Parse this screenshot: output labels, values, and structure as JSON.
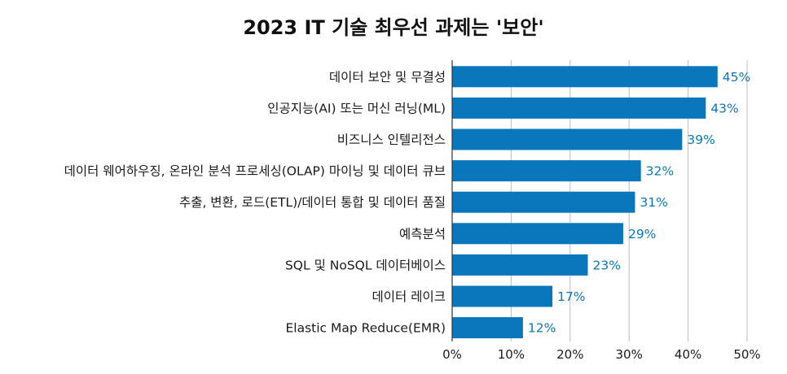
{
  "colors": {
    "bar": "#0a77bd",
    "data_label": "#0a77bd",
    "grid": "#bdbdbd",
    "text": "#1a1a1a"
  },
  "chart_data": {
    "type": "bar",
    "orientation": "horizontal",
    "title": "2023 IT 기술 최우선 과제는 '보안'",
    "categories": [
      "데이터 보안 및 무결성",
      "인공지능(AI) 또는 머신 러닝(ML)",
      "비즈니스 인텔리전스",
      "데이터 웨어하우징, 온라인 분석 프로세싱(OLAP) 마이닝 및 데이터 큐브",
      "추출, 변환, 로드(ETL)/데이터 통합 및 데이터 품질",
      "예측분석",
      "SQL 및 NoSQL 데이터베이스",
      "데이터 레이크",
      "Elastic Map Reduce(EMR)"
    ],
    "values": [
      45,
      43,
      39,
      32,
      31,
      29,
      23,
      17,
      12
    ],
    "value_labels": [
      "45%",
      "43%",
      "39%",
      "32%",
      "31%",
      "29%",
      "23%",
      "17%",
      "12%"
    ],
    "xlim": [
      0,
      50
    ],
    "x_ticks": [
      0,
      10,
      20,
      30,
      40,
      50
    ],
    "x_tick_labels": [
      "0%",
      "10%",
      "20%",
      "30%",
      "40%",
      "50%"
    ],
    "xlabel": "",
    "ylabel": "",
    "grid": "vertical",
    "legend": "none"
  }
}
